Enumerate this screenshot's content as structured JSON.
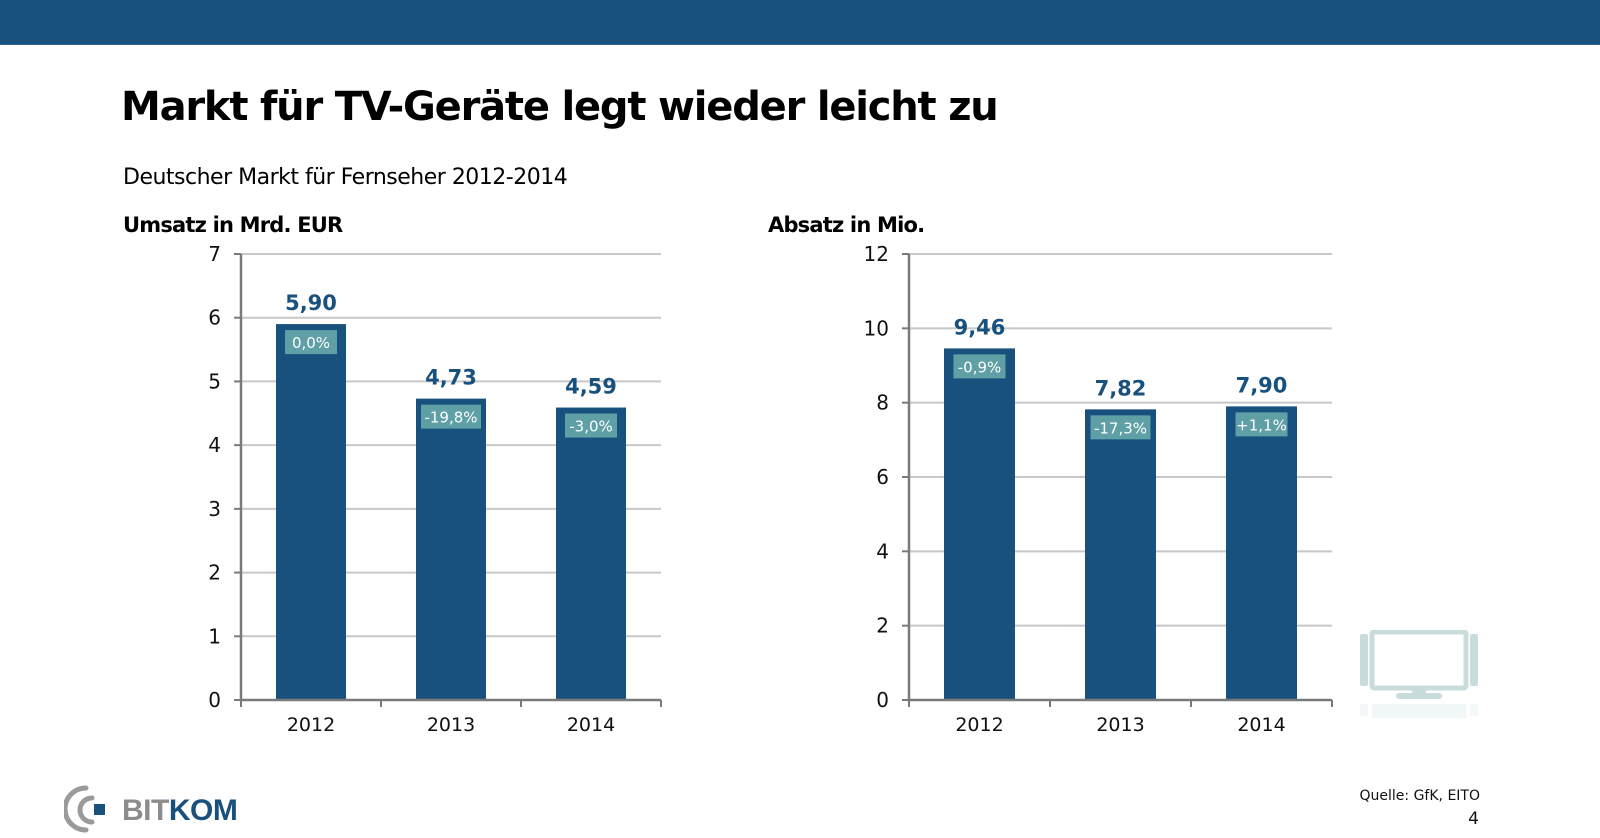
{
  "header": {
    "title": "Markt für TV-Geräte legt wieder leicht zu",
    "subtitle": "Deutscher Markt für Fernseher 2012-2014"
  },
  "colors": {
    "brand": "#18517e",
    "bar": "#18517e",
    "badge": "#5f9fa6",
    "grid": "#c8c8c8",
    "axis": "#7a7a7a",
    "icon": "#c9dcdc"
  },
  "chart_data": [
    {
      "type": "bar",
      "title": "Umsatz in Mrd. EUR",
      "xlabel": "",
      "ylabel": "Umsatz in Mrd. EUR",
      "categories": [
        "2012",
        "2013",
        "2014"
      ],
      "values": [
        5.9,
        4.73,
        4.59
      ],
      "value_labels": [
        "5,90",
        "4,73",
        "4,59"
      ],
      "change_labels": [
        "0,0%",
        "-19,8%",
        "-3,0%"
      ],
      "ylim": [
        0,
        7
      ],
      "yticks": [
        0,
        1,
        2,
        3,
        4,
        5,
        6,
        7
      ],
      "ytick_labels": [
        "0",
        "1",
        "2",
        "3",
        "4",
        "5",
        "6",
        "7"
      ],
      "grid": true,
      "legend": "none"
    },
    {
      "type": "bar",
      "title": "Absatz in Mio.",
      "xlabel": "",
      "ylabel": "Absatz in Mio.",
      "categories": [
        "2012",
        "2013",
        "2014"
      ],
      "values": [
        9.46,
        7.82,
        7.9
      ],
      "value_labels": [
        "9,46",
        "7,82",
        "7,90"
      ],
      "change_labels": [
        "-0,9%",
        "-17,3%",
        "+1,1%"
      ],
      "ylim": [
        0,
        12
      ],
      "yticks": [
        0,
        2,
        4,
        6,
        8,
        10,
        12
      ],
      "ytick_labels": [
        "0",
        "2",
        "4",
        "6",
        "8",
        "10",
        "12"
      ],
      "grid": true,
      "legend": "none"
    }
  ],
  "footer": {
    "logo_bit": "BIT",
    "logo_kom": "KOM",
    "source": "Quelle: GfK, EITO",
    "page_number": "4"
  },
  "icons": {
    "tv": "tv-icon",
    "logo_mark": "bitkom-logo-icon"
  }
}
